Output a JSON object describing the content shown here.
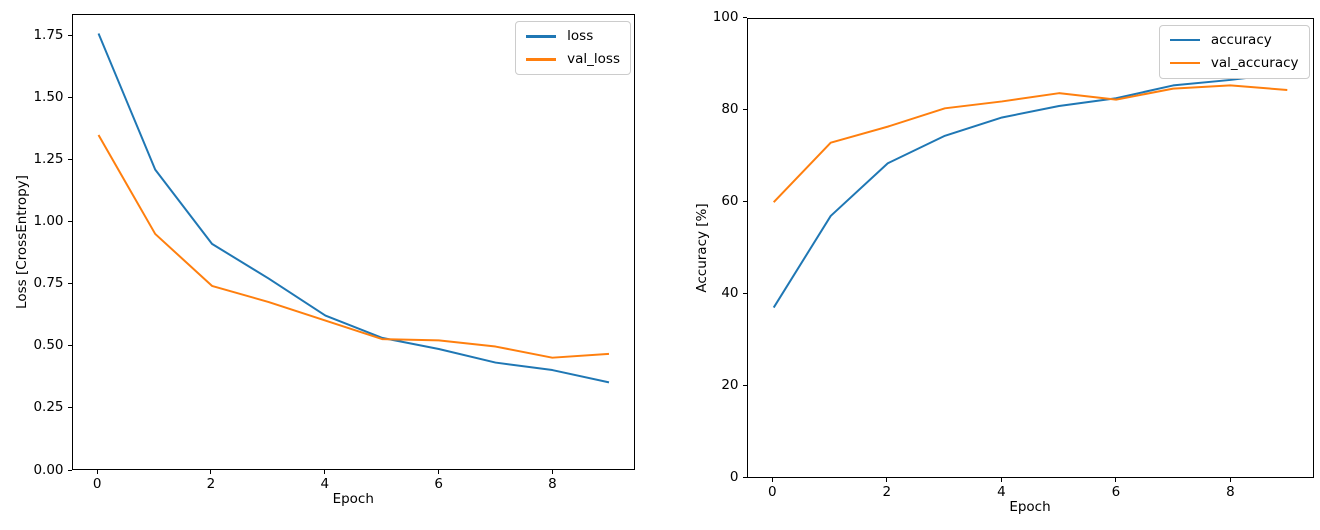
{
  "figure": {
    "background": "#ffffff",
    "axis_color": "#000000",
    "legend_border_color": "#cccccc"
  },
  "chart_data": [
    {
      "id": "loss",
      "type": "line",
      "title": "",
      "xlabel": "Epoch",
      "ylabel": "Loss [CrossEntropy]",
      "x": [
        0,
        1,
        2,
        3,
        4,
        5,
        6,
        7,
        8,
        9
      ],
      "series": [
        {
          "name": "loss",
          "color": "#1f77b4",
          "values": [
            1.76,
            1.21,
            0.91,
            0.77,
            0.62,
            0.53,
            0.485,
            0.43,
            0.4,
            0.35
          ]
        },
        {
          "name": "val_loss",
          "color": "#ff7f0e",
          "values": [
            1.35,
            0.95,
            0.74,
            0.675,
            0.6,
            0.525,
            0.52,
            0.495,
            0.45,
            0.465
          ]
        }
      ],
      "xlim": [
        -0.45,
        9.45
      ],
      "ylim": [
        0,
        1.835
      ],
      "xticks": [
        0,
        2,
        4,
        6,
        8
      ],
      "xtick_labels": [
        "0",
        "2",
        "4",
        "6",
        "8"
      ],
      "yticks": [
        0,
        0.25,
        0.5,
        0.75,
        1.0,
        1.25,
        1.5,
        1.75
      ],
      "ytick_labels": [
        "0.00",
        "0.25",
        "0.50",
        "0.75",
        "1.00",
        "1.25",
        "1.50",
        "1.75"
      ],
      "grid": false,
      "legend": {
        "position": "upper right",
        "entries": [
          "loss",
          "val_loss"
        ]
      }
    },
    {
      "id": "accuracy",
      "type": "line",
      "title": "",
      "xlabel": "Epoch",
      "ylabel": "Accuracy [%]",
      "x": [
        0,
        1,
        2,
        3,
        4,
        5,
        6,
        7,
        8,
        9
      ],
      "series": [
        {
          "name": "accuracy",
          "color": "#1f77b4",
          "values": [
            37,
            57,
            68.5,
            74.5,
            78.5,
            81,
            82.7,
            85.5,
            86.7,
            88.2
          ]
        },
        {
          "name": "val_accuracy",
          "color": "#ff7f0e",
          "values": [
            60,
            73,
            76.5,
            80.5,
            82,
            83.8,
            82.4,
            84.8,
            85.5,
            84.5
          ]
        }
      ],
      "xlim": [
        -0.45,
        9.45
      ],
      "ylim": [
        0,
        100
      ],
      "xticks": [
        0,
        2,
        4,
        6,
        8
      ],
      "xtick_labels": [
        "0",
        "2",
        "4",
        "6",
        "8"
      ],
      "yticks": [
        0,
        20,
        40,
        60,
        80,
        100
      ],
      "ytick_labels": [
        "0",
        "20",
        "40",
        "60",
        "80",
        "100"
      ],
      "grid": false,
      "legend": {
        "position": "upper right",
        "entries": [
          "accuracy",
          "val_accuracy"
        ]
      }
    }
  ]
}
